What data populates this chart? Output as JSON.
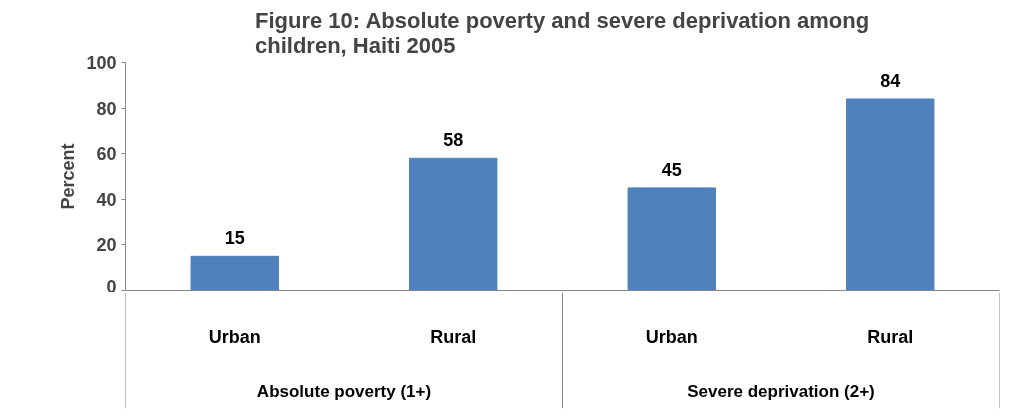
{
  "chart_data": {
    "type": "bar",
    "title": "Figure 10: Absolute poverty and severe deprivation among children, Haiti 2005",
    "ylabel": "Percent",
    "categories": [
      "Urban",
      "Rural",
      "Urban",
      "Rural"
    ],
    "annotations": [
      "Absolute poverty (1+)",
      "Severe deprivation (2+)"
    ],
    "values": [
      15,
      58,
      45,
      84
    ],
    "color": "#4f81bd",
    "ylim": [
      0,
      100
    ],
    "yticks": [
      0,
      20,
      40,
      60,
      80,
      100
    ],
    "data_labels": true
  }
}
